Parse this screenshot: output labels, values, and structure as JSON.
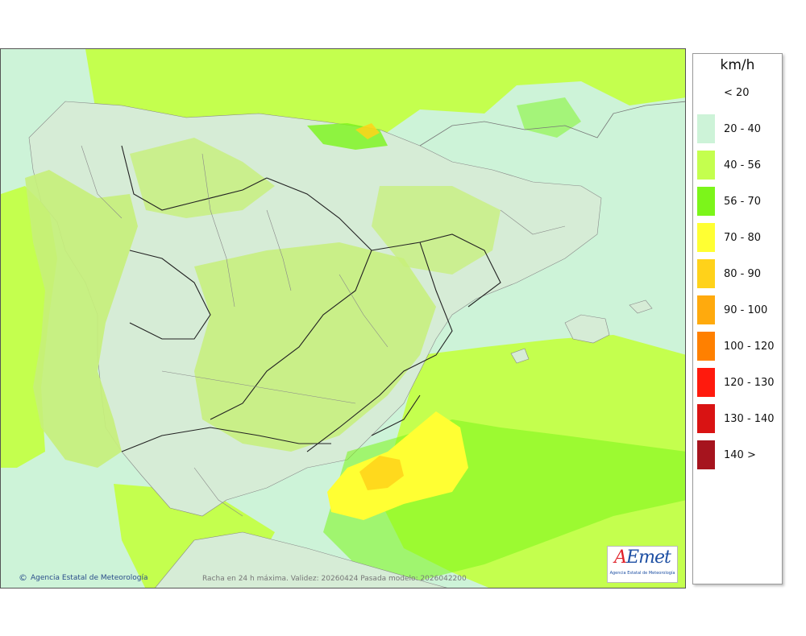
{
  "legend": {
    "unit": "km/h",
    "items": [
      {
        "label": "< 20",
        "color": "#ffffff"
      },
      {
        "label": "20 - 40",
        "color": "#cdf3d8"
      },
      {
        "label": "40 - 56",
        "color": "#c4ff4e"
      },
      {
        "label": "56 - 70",
        "color": "#7cf51a"
      },
      {
        "label": "70 - 80",
        "color": "#ffff33"
      },
      {
        "label": "80 - 90",
        "color": "#ffd21a"
      },
      {
        "label": "90 - 100",
        "color": "#ffaa0d"
      },
      {
        "label": "100 - 120",
        "color": "#ff8000"
      },
      {
        "label": "120 - 130",
        "color": "#ff1a0d"
      },
      {
        "label": "130 - 140",
        "color": "#d91313"
      },
      {
        "label": "140 >",
        "color": "#a6141e"
      }
    ]
  },
  "credit": {
    "symbol": "©",
    "text": "Agencia Estatal de Meteorología"
  },
  "caption": "Racha en 24 h máxima. Validez: 20260424 Pasada modelo: 2026042200",
  "logo": {
    "mark_a": "A",
    "mark_rest": "Emet",
    "subtitle": "Agencia Estatal de Meteorología"
  }
}
